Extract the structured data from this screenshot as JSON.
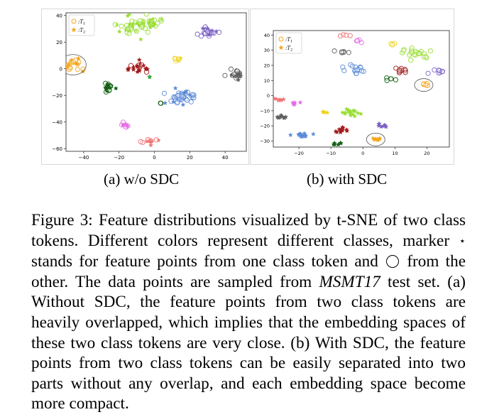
{
  "figure": {
    "panels": [
      {
        "id": "a",
        "subcaption": "(a) w/o SDC",
        "legend": [
          "T1",
          "T2"
        ],
        "chart_data": {
          "type": "scatter",
          "xticks": [
            -40,
            -20,
            0,
            20,
            40
          ],
          "yticks": [
            40,
            20,
            0,
            -20,
            -40,
            -60
          ],
          "xlim": [
            -50,
            52
          ],
          "ylim": [
            -62,
            42
          ],
          "clusters": [
            {
              "color": "#f5a51c",
              "x": -46,
              "y": 3,
              "n": 26,
              "s": 3.2,
              "marker": "mixed",
              "highlight": true
            },
            {
              "color": "#9ade36",
              "x": -13,
              "y": 32,
              "n": 42,
              "s": 5.0,
              "marker": "mixed"
            },
            {
              "color": "#9ade36",
              "x": -2,
              "y": 35,
              "n": 24,
              "s": 3.0,
              "marker": "mixed"
            },
            {
              "color": "#7c61c4",
              "x": 30,
              "y": 27,
              "n": 26,
              "s": 3.0,
              "marker": "mixed"
            },
            {
              "color": "#ecd31a",
              "x": 13,
              "y": 7,
              "n": 7,
              "s": 1.2,
              "marker": "mixed"
            },
            {
              "color": "#a31a1a",
              "x": -9,
              "y": 1,
              "n": 22,
              "s": 3.0,
              "marker": "mixed"
            },
            {
              "color": "#3da73d",
              "x": -3,
              "y": -6,
              "n": 2,
              "s": 0.6,
              "marker": "mixed"
            },
            {
              "color": "#5e5e5e",
              "x": 46,
              "y": -4,
              "n": 20,
              "s": 2.4,
              "marker": "mixed"
            },
            {
              "color": "#0f5e0f",
              "x": -27,
              "y": -14,
              "n": 20,
              "s": 2.4,
              "marker": "mixed"
            },
            {
              "color": "#5b8ad6",
              "x": 15,
              "y": -21,
              "n": 46,
              "s": 4.0,
              "marker": "mixed"
            },
            {
              "color": "#0f5e0f",
              "x": 4,
              "y": -26,
              "n": 2,
              "s": 0.4,
              "marker": "mixed"
            },
            {
              "color": "#e66ae6",
              "x": -17,
              "y": -43,
              "n": 12,
              "s": 1.8,
              "marker": "mixed"
            },
            {
              "color": "#f07070",
              "x": -2,
              "y": -54,
              "n": 12,
              "s": 2.0,
              "marker": "mixed"
            }
          ]
        }
      },
      {
        "id": "b",
        "subcaption": "(b) with SDC",
        "legend": [
          "T1",
          "T2"
        ],
        "chart_data": {
          "type": "scatter",
          "xticks": [
            -20,
            -10,
            0,
            10,
            20
          ],
          "yticks": [
            40,
            30,
            20,
            10,
            0,
            -10,
            -20,
            -30
          ],
          "xlim": [
            -28,
            27
          ],
          "ylim": [
            -34,
            43
          ],
          "clusters": [
            {
              "color": "#f07070",
              "x": -6,
              "y": 39,
              "n": 4,
              "s": 0.9,
              "marker": "circle"
            },
            {
              "color": "#e66ae6",
              "x": -2,
              "y": 36,
              "n": 4,
              "s": 0.6,
              "marker": "circle"
            },
            {
              "color": "#ecd31a",
              "x": 10,
              "y": 34,
              "n": 4,
              "s": 0.6,
              "marker": "circle"
            },
            {
              "color": "#5e5e5e",
              "x": -6,
              "y": 29,
              "n": 6,
              "s": 0.8,
              "marker": "circle"
            },
            {
              "color": "#9ade36",
              "x": 16,
              "y": 28,
              "n": 22,
              "s": 2.2,
              "marker": "circle"
            },
            {
              "color": "#5b8ad6",
              "x": -2,
              "y": 17,
              "n": 16,
              "s": 2.0,
              "marker": "circle"
            },
            {
              "color": "#a31a1a",
              "x": 12,
              "y": 17,
              "n": 10,
              "s": 1.4,
              "marker": "circle"
            },
            {
              "color": "#7c61c4",
              "x": 23,
              "y": 16,
              "n": 8,
              "s": 1.2,
              "marker": "circle"
            },
            {
              "color": "#0f5e0f",
              "x": 9,
              "y": 11,
              "n": 5,
              "s": 0.8,
              "marker": "circle"
            },
            {
              "color": "#f5a51c",
              "x": 19,
              "y": 7,
              "n": 5,
              "s": 0.8,
              "marker": "circle",
              "highlight": true
            },
            {
              "color": "#f07070",
              "x": -26,
              "y": -3,
              "n": 6,
              "s": 0.8,
              "marker": "star"
            },
            {
              "color": "#e66ae6",
              "x": -21,
              "y": -5,
              "n": 6,
              "s": 0.6,
              "marker": "star"
            },
            {
              "color": "#ecd31a",
              "x": -12,
              "y": -11,
              "n": 4,
              "s": 0.5,
              "marker": "star"
            },
            {
              "color": "#9ade36",
              "x": -4,
              "y": -11,
              "n": 18,
              "s": 1.6,
              "marker": "star"
            },
            {
              "color": "#5e5e5e",
              "x": -26,
              "y": -14,
              "n": 10,
              "s": 0.9,
              "marker": "star"
            },
            {
              "color": "#a31a1a",
              "x": -7,
              "y": -23,
              "n": 12,
              "s": 1.2,
              "marker": "star"
            },
            {
              "color": "#7c61c4",
              "x": 6,
              "y": -20,
              "n": 8,
              "s": 0.8,
              "marker": "star"
            },
            {
              "color": "#5b8ad6",
              "x": -19,
              "y": -26,
              "n": 16,
              "s": 1.5,
              "marker": "star"
            },
            {
              "color": "#f5a51c",
              "x": 4,
              "y": -29,
              "n": 8,
              "s": 0.8,
              "marker": "star",
              "highlight": true
            },
            {
              "color": "#0f5e0f",
              "x": -8,
              "y": -32,
              "n": 6,
              "s": 0.6,
              "marker": "star"
            }
          ]
        }
      }
    ]
  },
  "caption": {
    "label": "Figure 3:",
    "part1": " Feature distributions visualized by t-SNE of two class tokens. Different colors represent different classes, marker ",
    "star": "⋆",
    "part2": " stands for feature points from one class token and ",
    "part3": " from the other. The data points are sampled from ",
    "dataset": "MSMT17",
    "part4": " test set. (a) Without SDC, the feature points from two class tokens are heavily overlapped, which implies that the embedding spaces of these two class tokens are very close. (b) With SDC, the feature points from two class tokens can be easily separated into two parts without any overlap, and each embedding space become more compact."
  }
}
